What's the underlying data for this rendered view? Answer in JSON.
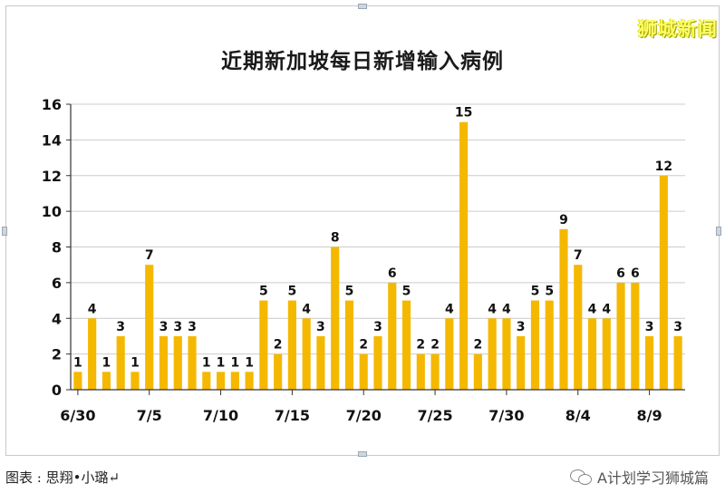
{
  "brand": "狮城新闻",
  "credit": "图表 : 思翔•小璐↵",
  "source": "A计划学习狮城篇",
  "icons": {
    "source_icon": "wechat-icon"
  },
  "colors": {
    "bar": "#f5b800",
    "axis": "#333333",
    "grid": "#cccccc"
  },
  "chart_data": {
    "type": "bar",
    "title": "近期新加坡每日新增输入病例",
    "xlabel": "",
    "ylabel": "",
    "ylim": [
      0,
      16
    ],
    "yticks": [
      0,
      2,
      4,
      6,
      8,
      10,
      12,
      14,
      16
    ],
    "grid": true,
    "categories": [
      "6/30",
      "7/1",
      "7/2",
      "7/3",
      "7/4",
      "7/5",
      "7/6",
      "7/7",
      "7/8",
      "7/9",
      "7/10",
      "7/11",
      "7/12",
      "7/13",
      "7/14",
      "7/15",
      "7/16",
      "7/17",
      "7/18",
      "7/19",
      "7/20",
      "7/21",
      "7/22",
      "7/23",
      "7/24",
      "7/25",
      "7/26",
      "7/27",
      "7/28",
      "7/29",
      "7/30",
      "7/31",
      "8/1",
      "8/2",
      "8/3",
      "8/4",
      "8/5",
      "8/6",
      "8/7",
      "8/8",
      "8/9",
      "8/10",
      "8/11"
    ],
    "tick_labels": [
      "6/30",
      "7/5",
      "7/10",
      "7/15",
      "7/20",
      "7/25",
      "7/30",
      "8/4",
      "8/9"
    ],
    "values": [
      1,
      4,
      1,
      3,
      1,
      7,
      3,
      3,
      3,
      1,
      1,
      1,
      1,
      5,
      2,
      5,
      4,
      3,
      8,
      5,
      2,
      3,
      6,
      5,
      2,
      2,
      4,
      15,
      2,
      4,
      4,
      3,
      5,
      5,
      9,
      7,
      4,
      4,
      6,
      6,
      3,
      12,
      3
    ]
  }
}
